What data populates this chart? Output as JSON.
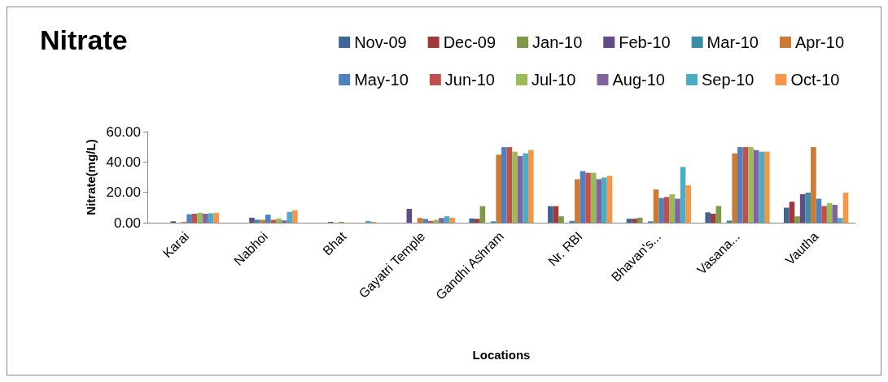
{
  "chart_data": {
    "type": "bar",
    "title": "Nitrate",
    "xlabel": "Locations",
    "ylabel": "Nitrate(mg/L)",
    "categories": [
      "Karai",
      "Nabhoi",
      "Bhat",
      "Gayatri Temple",
      "Gandhi Ashram",
      "Nr. RBI",
      "Bhavan's...",
      "Vasana...",
      "Vautha"
    ],
    "series": [
      {
        "name": "Nov-09",
        "color": "#3f6599",
        "values": [
          0,
          0,
          0,
          0,
          2.8,
          10.9,
          2.6,
          6.8,
          9.9
        ]
      },
      {
        "name": "Dec-09",
        "color": "#9e3b3a",
        "values": [
          0,
          0,
          0,
          0,
          2.6,
          10.9,
          2.6,
          5.9,
          13.8
        ]
      },
      {
        "name": "Jan-10",
        "color": "#7e9a46",
        "values": [
          null,
          0,
          0,
          0,
          10.9,
          4.2,
          3.3,
          11,
          4.2
        ]
      },
      {
        "name": "Feb-10",
        "color": "#634b85",
        "values": [
          0.9,
          3.3,
          0.5,
          9.1,
          null,
          0,
          0,
          0,
          18.8
        ]
      },
      {
        "name": "Mar-10",
        "color": "#3a8fa5",
        "values": [
          0,
          2,
          0,
          0,
          0.9,
          1.2,
          0.9,
          1.4,
          19.8
        ]
      },
      {
        "name": "Apr-10",
        "color": "#cd7a35",
        "values": [
          0.5,
          1.9,
          0.5,
          3.1,
          44.8,
          28.7,
          21.9,
          45.7,
          49.8
        ]
      },
      {
        "name": "May-10",
        "color": "#4f81bd",
        "values": [
          5.6,
          5.3,
          null,
          2.5,
          49.8,
          34,
          16.3,
          49.8,
          15.8
        ]
      },
      {
        "name": "Jun-10",
        "color": "#c0504d",
        "values": [
          5.9,
          1.9,
          0,
          1.2,
          49.8,
          32.9,
          16.9,
          49.8,
          11
        ]
      },
      {
        "name": "Jul-10",
        "color": "#9bbb59",
        "values": [
          6.5,
          2.8,
          null,
          1.9,
          46.8,
          32.9,
          18.8,
          49.8,
          13
        ]
      },
      {
        "name": "Aug-10",
        "color": "#8064a2",
        "values": [
          5.9,
          1.5,
          0,
          3.1,
          43.9,
          28.7,
          15.8,
          47.9,
          11.8
        ]
      },
      {
        "name": "Sep-10",
        "color": "#4bacc6",
        "values": [
          6.2,
          7.1,
          1.2,
          4.2,
          45.7,
          29.8,
          36.7,
          46.8,
          3.1
        ]
      },
      {
        "name": "Oct-10",
        "color": "#f79646",
        "values": [
          6.5,
          8.2,
          0.5,
          3.3,
          47.9,
          30.9,
          24.7,
          46.8,
          19.8
        ]
      }
    ],
    "ylim": [
      0,
      60
    ],
    "yticks": [
      {
        "value": 0,
        "label": "0.00"
      },
      {
        "value": 20,
        "label": "20.00"
      },
      {
        "value": 40,
        "label": "40.00"
      },
      {
        "value": 60,
        "label": "60.00"
      }
    ],
    "grid": false,
    "legend": "top right"
  }
}
